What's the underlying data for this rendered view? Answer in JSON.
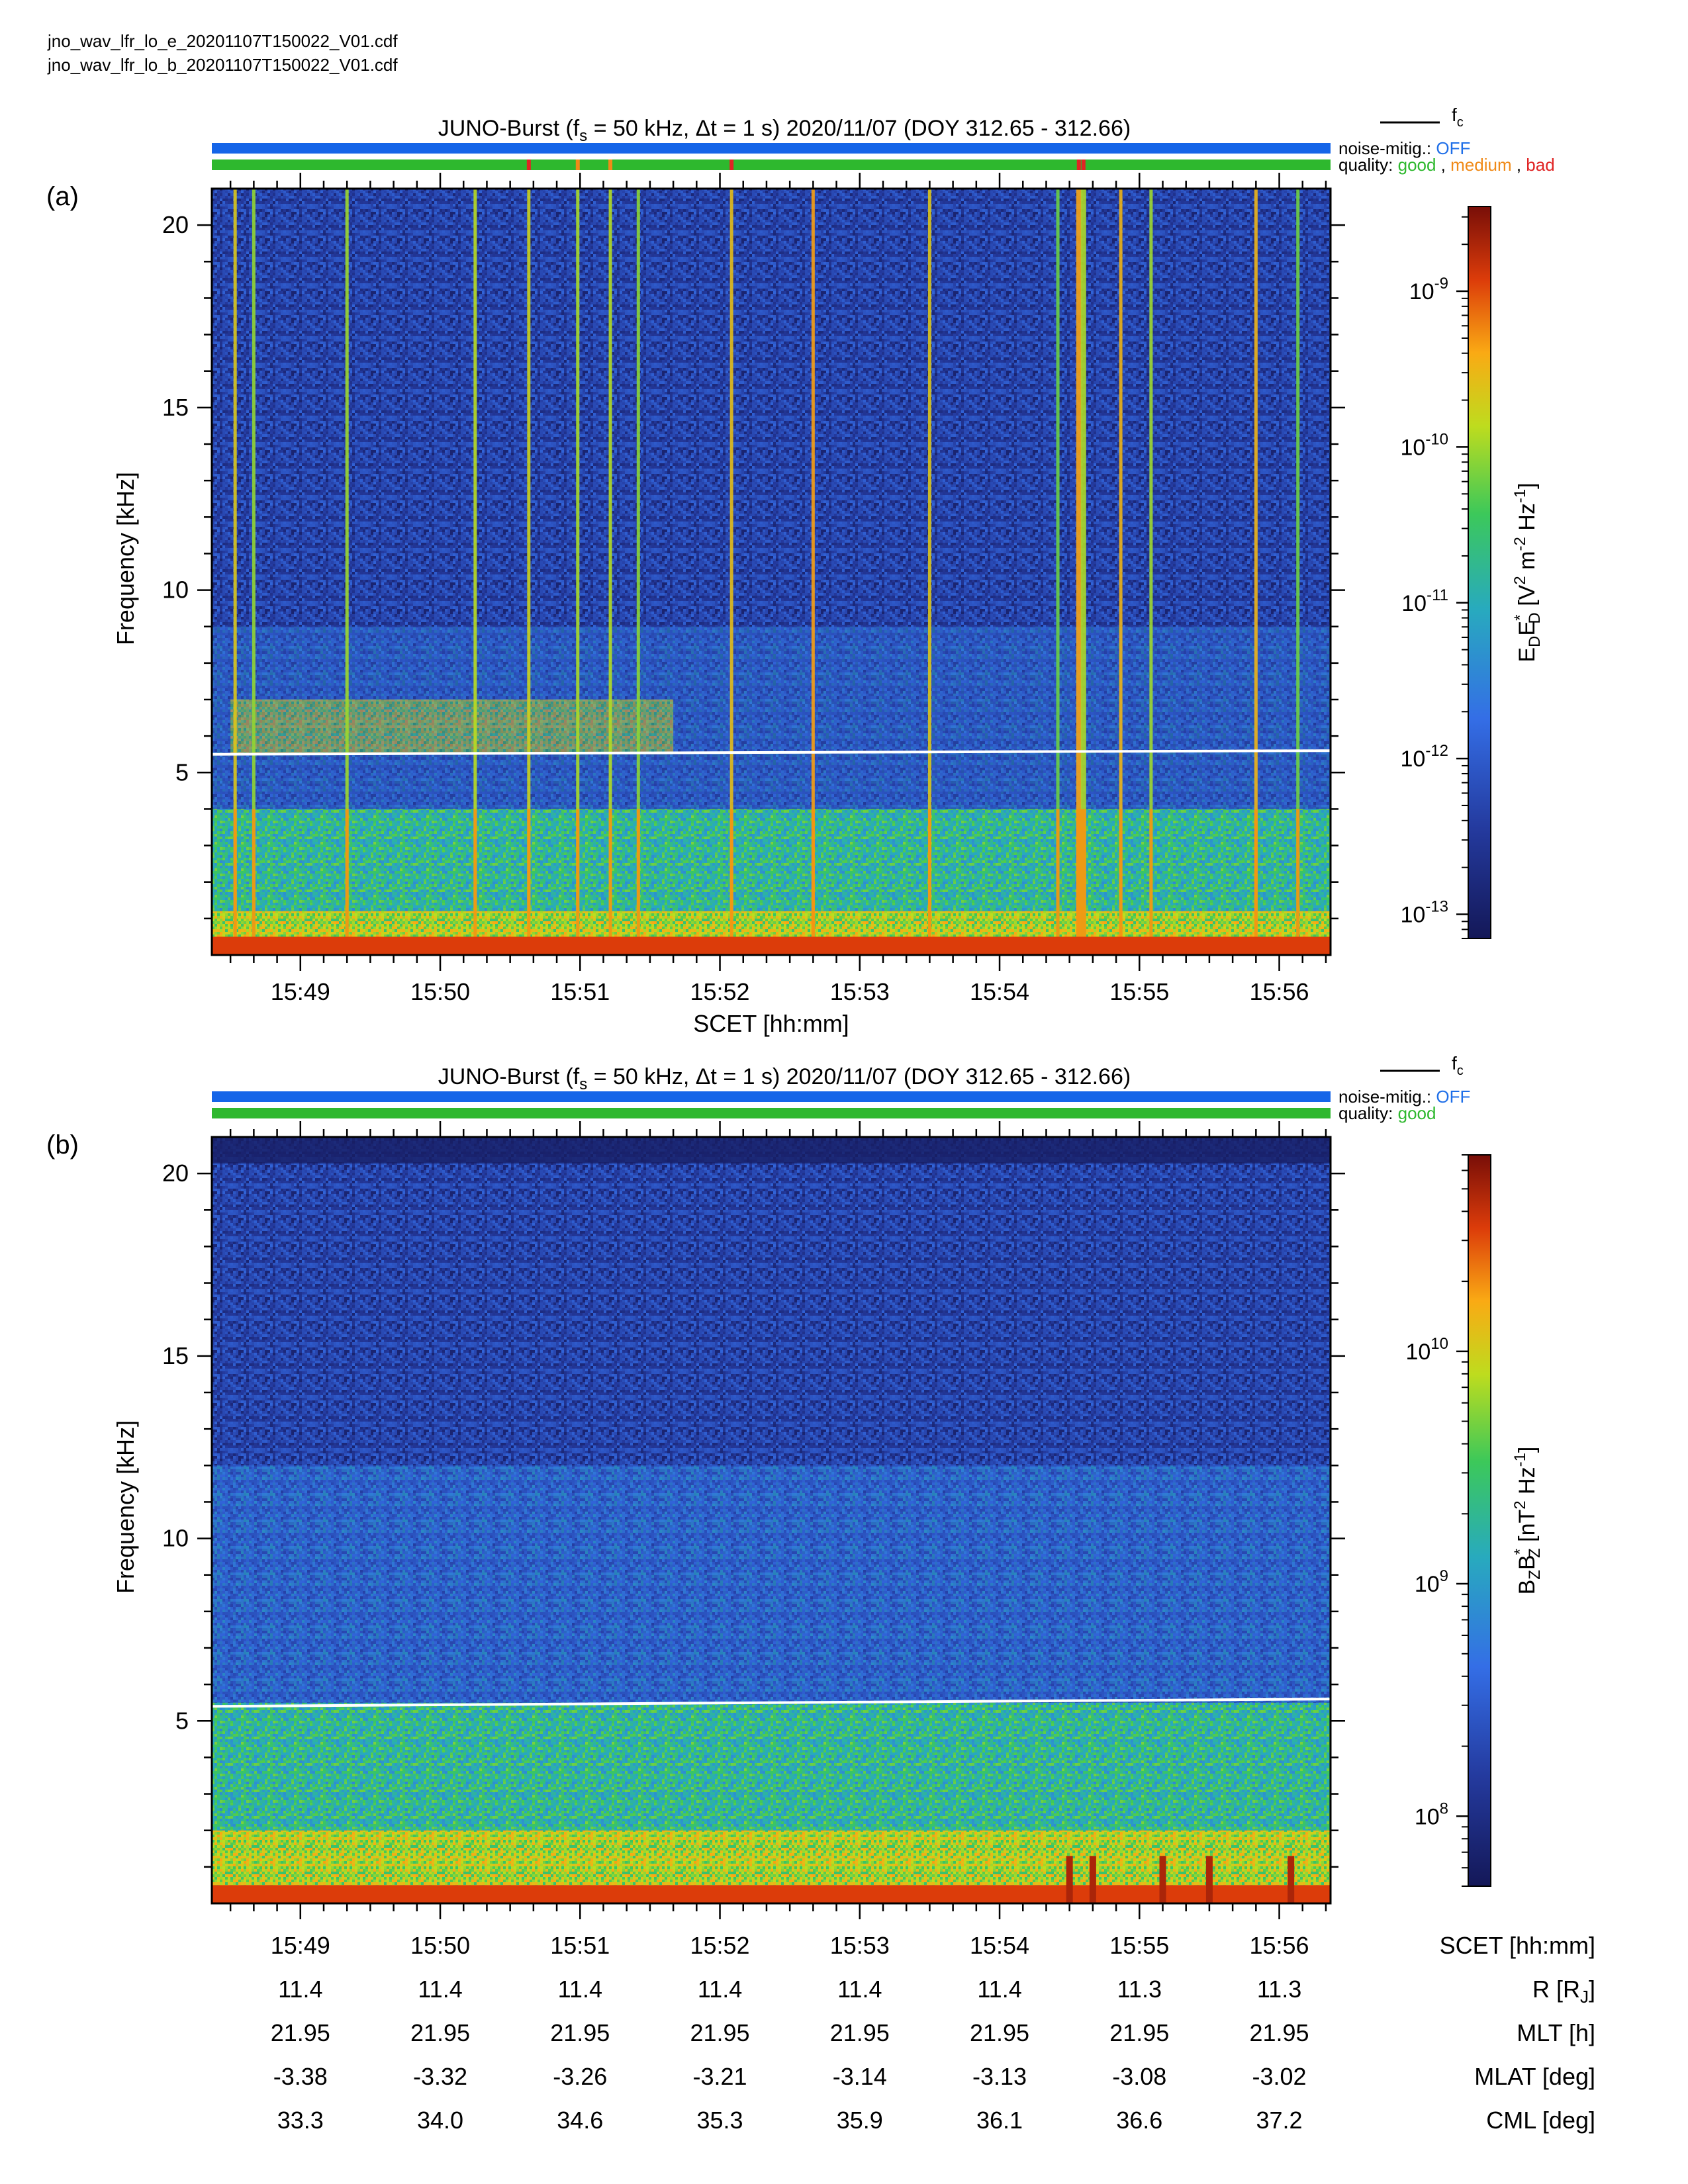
{
  "files": {
    "line1": "jno_wav_lfr_lo_e_20201107T150022_V01.cdf",
    "line2": "jno_wav_lfr_lo_b_20201107T150022_V01.cdf"
  },
  "legend": {
    "fc_symbol": "f",
    "fc_sub": "c"
  },
  "colors": {
    "noise_bar": "#1565e8",
    "good": "#2eb82e",
    "medium": "#f08a18",
    "bad": "#e02424",
    "fc_line": "#ffffff",
    "noise_off_text": "#1f6fe8"
  },
  "chart_data": [
    {
      "type": "heatmap",
      "panel_label": "(a)",
      "title": {
        "prefix": "JUNO-Burst (f",
        "sub": "s",
        "rest": " = 50 kHz, Δt = 1 s)  2020/11/07 (DOY 312.65 - 312.66)"
      },
      "noise_mitigation": {
        "label": "noise-mitig.:",
        "value": "OFF"
      },
      "quality": {
        "label": "quality:",
        "entries": [
          "good",
          "medium",
          "bad"
        ],
        "flags": [
          {
            "time": "15:50:38",
            "level": "bad"
          },
          {
            "time": "15:50:59",
            "level": "medium"
          },
          {
            "time": "15:51:13",
            "level": "medium"
          },
          {
            "time": "15:52:05",
            "level": "bad"
          },
          {
            "time": "15:54:34",
            "level": "bad"
          },
          {
            "time": "15:54:36",
            "level": "bad"
          }
        ]
      },
      "ylabel": "Frequency [kHz]",
      "xlabel": "SCET [hh:mm]",
      "ylim": [
        0,
        21
      ],
      "yticks": [
        "5",
        "10",
        "15",
        "20"
      ],
      "xlim": [
        "15:48:22",
        "15:56:22"
      ],
      "xticks": [
        "15:49",
        "15:50",
        "15:51",
        "15:52",
        "15:53",
        "15:54",
        "15:55",
        "15:56"
      ],
      "fc_khz": [
        5.5,
        5.6
      ],
      "colorbar": {
        "label": "EDED* [V² m⁻² Hz⁻¹]",
        "label_parts": {
          "a": "E",
          "a_sub": "D",
          "b": "E",
          "b_sup": "*",
          "b_sub": "D",
          "unit": " [V",
          "unit_sup1": "2",
          "unit_mid": " m",
          "unit_sup2": "-2",
          "unit_mid2": " Hz",
          "unit_sup3": "-1",
          "unit_end": "]"
        },
        "scale": "log",
        "range": [
          7e-14,
          3.5e-09
        ],
        "ticks": [
          {
            "mant": "10",
            "exp": "-9",
            "value": 1e-09
          },
          {
            "mant": "10",
            "exp": "-10",
            "value": 1e-10
          },
          {
            "mant": "10",
            "exp": "-11",
            "value": 1e-11
          },
          {
            "mant": "10",
            "exp": "-12",
            "value": 1e-12
          },
          {
            "mant": "10",
            "exp": "-13",
            "value": 1e-13
          }
        ]
      },
      "features": {
        "broadband_bursts_time": [
          "15:48:32",
          "15:48:40",
          "15:49:20",
          "15:50:15",
          "15:50:38",
          "15:50:59",
          "15:51:13",
          "15:51:25",
          "15:52:05",
          "15:52:40",
          "15:53:30",
          "15:54:25",
          "15:54:34",
          "15:54:36",
          "15:54:52",
          "15:55:05",
          "15:55:50",
          "15:56:08"
        ],
        "emission_band_khz": [
          5.5,
          7.0
        ],
        "emission_band_time": [
          "15:48:30",
          "15:51:40"
        ]
      }
    },
    {
      "type": "heatmap",
      "panel_label": "(b)",
      "title": {
        "prefix": "JUNO-Burst (f",
        "sub": "s",
        "rest": " = 50 kHz, Δt = 1 s)  2020/11/07 (DOY 312.65 - 312.66)"
      },
      "noise_mitigation": {
        "label": "noise-mitig.:",
        "value": "OFF"
      },
      "quality": {
        "label": "quality:",
        "entries": [
          "good"
        ],
        "flags": []
      },
      "ylabel": "Frequency [kHz]",
      "ylim": [
        0,
        21
      ],
      "yticks": [
        "5",
        "10",
        "15",
        "20"
      ],
      "xlim": [
        "15:48:22",
        "15:56:22"
      ],
      "fc_khz": [
        5.4,
        5.6
      ],
      "colorbar": {
        "label": "BZBZ* [nT² Hz⁻¹]",
        "label_parts": {
          "a": "B",
          "a_sub": "Z",
          "b": "B",
          "b_sup": "*",
          "b_sub": "Z",
          "unit": " [nT",
          "unit_sup1": "2",
          "unit_mid": " Hz",
          "unit_sup2": "-1",
          "unit_end": "]"
        },
        "scale": "log",
        "range": [
          50000000.0,
          70000000000.0
        ],
        "ticks": [
          {
            "mant": "10",
            "exp": "10",
            "value": 10000000000.0
          },
          {
            "mant": "10",
            "exp": "9",
            "value": 1000000000.0
          },
          {
            "mant": "10",
            "exp": "8",
            "value": 100000000.0
          }
        ]
      },
      "features": {
        "low_freq_bursts_time": [
          "15:54:30",
          "15:54:40",
          "15:55:10",
          "15:55:30",
          "15:56:05"
        ]
      }
    }
  ],
  "ephemeris": {
    "rows": [
      {
        "label": "SCET [hh:mm]",
        "values": [
          "15:49",
          "15:50",
          "15:51",
          "15:52",
          "15:53",
          "15:54",
          "15:55",
          "15:56"
        ]
      },
      {
        "label": "R [RJ]",
        "label_main": "R [R",
        "label_sub": "J",
        "label_end": "]",
        "values": [
          "11.4",
          "11.4",
          "11.4",
          "11.4",
          "11.4",
          "11.4",
          "11.3",
          "11.3"
        ]
      },
      {
        "label": "MLT [h]",
        "values": [
          "21.95",
          "21.95",
          "21.95",
          "21.95",
          "21.95",
          "21.95",
          "21.95",
          "21.95"
        ]
      },
      {
        "label": "MLAT [deg]",
        "values": [
          "-3.38",
          "-3.32",
          "-3.26",
          "-3.21",
          "-3.14",
          "-3.13",
          "-3.08",
          "-3.02"
        ]
      },
      {
        "label": "CML [deg]",
        "values": [
          "33.3",
          "34.0",
          "34.6",
          "35.3",
          "35.9",
          "36.1",
          "36.6",
          "37.2"
        ]
      }
    ]
  }
}
